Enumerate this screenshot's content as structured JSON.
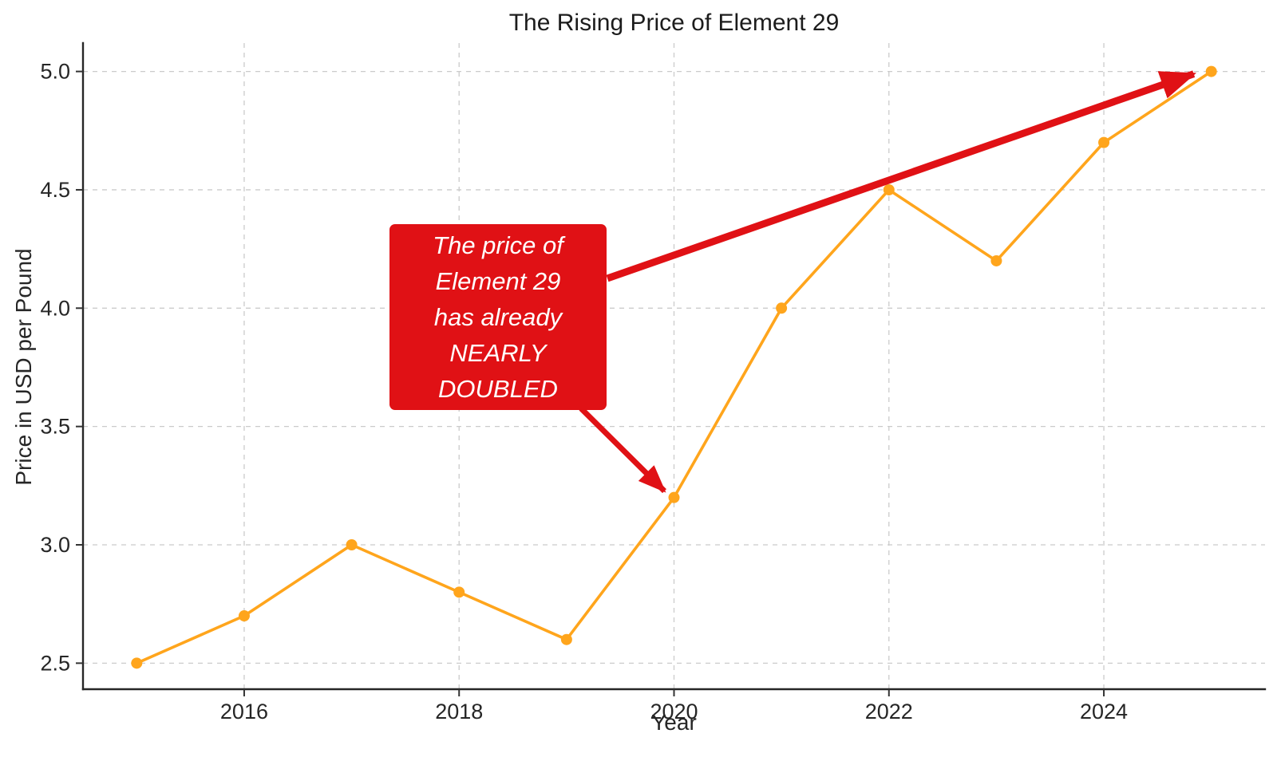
{
  "chart_data": {
    "type": "line",
    "title": "The Rising Price of Element 29",
    "xlabel": "Year",
    "ylabel": "Price in USD per Pound",
    "x": [
      2015,
      2016,
      2017,
      2018,
      2019,
      2020,
      2021,
      2022,
      2023,
      2024,
      2025
    ],
    "values": [
      2.5,
      2.7,
      3.0,
      2.8,
      2.6,
      3.2,
      4.0,
      4.5,
      4.2,
      4.7,
      5.0
    ],
    "xticks": [
      2016,
      2018,
      2020,
      2022,
      2024
    ],
    "yticks": [
      2.5,
      3.0,
      3.5,
      4.0,
      4.5,
      5.0
    ],
    "xlim": [
      2014.5,
      2025.5
    ],
    "ylim": [
      2.39,
      5.12
    ],
    "grid": true,
    "grid_style": "dashed",
    "legend": "none",
    "line_color": "#ffa51c",
    "marker": "circle",
    "annotation": {
      "text": "The price of\nElement 29\nhas already\nNEARLY\nDOUBLED",
      "box_color": "#e01115",
      "text_color": "#ffffff",
      "arrows": [
        {
          "target_year": 2025,
          "target_value": 5.0
        },
        {
          "target_year": 2020,
          "target_value": 3.2
        }
      ]
    }
  }
}
